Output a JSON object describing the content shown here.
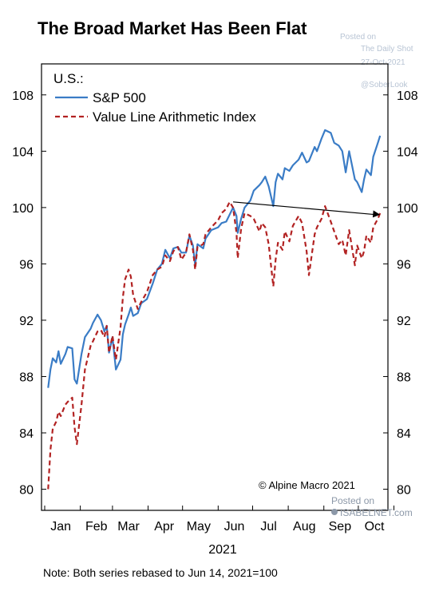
{
  "chart_data": {
    "type": "line",
    "title": "The Broad Market Has Been Flat",
    "panel_label": "U.S.:",
    "xlabel": "2021",
    "x_ticks": [
      "Jan",
      "Feb",
      "Mar",
      "Apr",
      "May",
      "Jun",
      "Jul",
      "Aug",
      "Sep",
      "Oct"
    ],
    "ylim": [
      78.5,
      110.2
    ],
    "y_ticks": [
      80,
      84,
      88,
      92,
      96,
      100,
      104,
      108
    ],
    "grid": false,
    "legend_position": "top-left",
    "source": "© Alpine Macro 2021",
    "note": "Note: Both series rebased to Jun 14, 2021=100",
    "series": [
      {
        "name": "S&P 500",
        "color": "#3a7cc6",
        "style": "solid",
        "points": [
          [
            "2021-01-04",
            87.2
          ],
          [
            "2021-01-06",
            88.5
          ],
          [
            "2021-01-08",
            89.3
          ],
          [
            "2021-01-11",
            89.0
          ],
          [
            "2021-01-13",
            89.8
          ],
          [
            "2021-01-15",
            88.9
          ],
          [
            "2021-01-19",
            89.6
          ],
          [
            "2021-01-21",
            90.1
          ],
          [
            "2021-01-25",
            90.0
          ],
          [
            "2021-01-27",
            87.8
          ],
          [
            "2021-01-29",
            87.5
          ],
          [
            "2021-02-02",
            89.6
          ],
          [
            "2021-02-05",
            90.8
          ],
          [
            "2021-02-10",
            91.4
          ],
          [
            "2021-02-12",
            91.8
          ],
          [
            "2021-02-16",
            92.4
          ],
          [
            "2021-02-19",
            92.0
          ],
          [
            "2021-02-22",
            91.2
          ],
          [
            "2021-02-24",
            91.6
          ],
          [
            "2021-02-26",
            89.7
          ],
          [
            "2021-03-01",
            90.8
          ],
          [
            "2021-03-04",
            88.5
          ],
          [
            "2021-03-08",
            89.2
          ],
          [
            "2021-03-10",
            91.0
          ],
          [
            "2021-03-12",
            91.7
          ],
          [
            "2021-03-15",
            92.4
          ],
          [
            "2021-03-17",
            92.9
          ],
          [
            "2021-03-19",
            92.3
          ],
          [
            "2021-03-23",
            92.5
          ],
          [
            "2021-03-26",
            93.2
          ],
          [
            "2021-03-31",
            93.5
          ],
          [
            "2021-04-05",
            94.6
          ],
          [
            "2021-04-09",
            95.6
          ],
          [
            "2021-04-13",
            96.0
          ],
          [
            "2021-04-16",
            97.0
          ],
          [
            "2021-04-20",
            96.4
          ],
          [
            "2021-04-23",
            97.1
          ],
          [
            "2021-04-27",
            97.2
          ],
          [
            "2021-04-30",
            96.8
          ],
          [
            "2021-05-04",
            96.8
          ],
          [
            "2021-05-07",
            98.0
          ],
          [
            "2021-05-10",
            97.3
          ],
          [
            "2021-05-12",
            95.9
          ],
          [
            "2021-05-14",
            97.4
          ],
          [
            "2021-05-19",
            97.1
          ],
          [
            "2021-05-21",
            97.8
          ],
          [
            "2021-05-26",
            98.4
          ],
          [
            "2021-06-01",
            98.6
          ],
          [
            "2021-06-04",
            98.9
          ],
          [
            "2021-06-08",
            99.0
          ],
          [
            "2021-06-11",
            99.5
          ],
          [
            "2021-06-14",
            100.0
          ],
          [
            "2021-06-17",
            99.4
          ],
          [
            "2021-06-18",
            98.2
          ],
          [
            "2021-06-21",
            99.2
          ],
          [
            "2021-06-24",
            100.0
          ],
          [
            "2021-06-29",
            100.5
          ],
          [
            "2021-07-02",
            101.2
          ],
          [
            "2021-07-07",
            101.6
          ],
          [
            "2021-07-09",
            101.8
          ],
          [
            "2021-07-12",
            102.2
          ],
          [
            "2021-07-15",
            101.5
          ],
          [
            "2021-07-19",
            100.1
          ],
          [
            "2021-07-21",
            101.8
          ],
          [
            "2021-07-23",
            102.4
          ],
          [
            "2021-07-27",
            102.0
          ],
          [
            "2021-07-29",
            102.8
          ],
          [
            "2021-08-02",
            102.6
          ],
          [
            "2021-08-05",
            103.0
          ],
          [
            "2021-08-10",
            103.4
          ],
          [
            "2021-08-13",
            103.9
          ],
          [
            "2021-08-17",
            103.2
          ],
          [
            "2021-08-19",
            103.3
          ],
          [
            "2021-08-24",
            104.3
          ],
          [
            "2021-08-26",
            104.0
          ],
          [
            "2021-08-30",
            104.9
          ],
          [
            "2021-09-02",
            105.5
          ],
          [
            "2021-09-07",
            105.3
          ],
          [
            "2021-09-10",
            104.6
          ],
          [
            "2021-09-14",
            104.4
          ],
          [
            "2021-09-17",
            104.0
          ],
          [
            "2021-09-20",
            102.5
          ],
          [
            "2021-09-23",
            104.0
          ],
          [
            "2021-09-28",
            102.0
          ],
          [
            "2021-09-30",
            101.8
          ],
          [
            "2021-10-04",
            101.1
          ],
          [
            "2021-10-06",
            102.0
          ],
          [
            "2021-10-08",
            102.7
          ],
          [
            "2021-10-12",
            102.3
          ],
          [
            "2021-10-14",
            103.6
          ],
          [
            "2021-10-18",
            104.6
          ],
          [
            "2021-10-20",
            105.1
          ]
        ]
      },
      {
        "name": "Value Line Arithmetic Index",
        "color": "#b22222",
        "style": "dashed",
        "points": [
          [
            "2021-01-04",
            80.0
          ],
          [
            "2021-01-06",
            82.8
          ],
          [
            "2021-01-08",
            84.3
          ],
          [
            "2021-01-11",
            84.8
          ],
          [
            "2021-01-13",
            85.5
          ],
          [
            "2021-01-15",
            85.2
          ],
          [
            "2021-01-19",
            86.0
          ],
          [
            "2021-01-21",
            86.2
          ],
          [
            "2021-01-25",
            86.5
          ],
          [
            "2021-01-27",
            84.4
          ],
          [
            "2021-01-29",
            83.2
          ],
          [
            "2021-02-02",
            86.0
          ],
          [
            "2021-02-05",
            88.5
          ],
          [
            "2021-02-10",
            90.2
          ],
          [
            "2021-02-12",
            90.5
          ],
          [
            "2021-02-16",
            91.2
          ],
          [
            "2021-02-19",
            91.3
          ],
          [
            "2021-02-22",
            90.8
          ],
          [
            "2021-02-24",
            91.6
          ],
          [
            "2021-02-26",
            89.7
          ],
          [
            "2021-03-01",
            90.9
          ],
          [
            "2021-03-04",
            89.2
          ],
          [
            "2021-03-08",
            91.5
          ],
          [
            "2021-03-10",
            93.6
          ],
          [
            "2021-03-12",
            94.9
          ],
          [
            "2021-03-15",
            95.6
          ],
          [
            "2021-03-17",
            95.1
          ],
          [
            "2021-03-19",
            93.8
          ],
          [
            "2021-03-23",
            92.8
          ],
          [
            "2021-03-26",
            93.3
          ],
          [
            "2021-03-31",
            94.0
          ],
          [
            "2021-04-05",
            95.2
          ],
          [
            "2021-04-09",
            95.6
          ],
          [
            "2021-04-13",
            95.8
          ],
          [
            "2021-04-16",
            96.6
          ],
          [
            "2021-04-20",
            96.2
          ],
          [
            "2021-04-23",
            96.9
          ],
          [
            "2021-04-27",
            97.2
          ],
          [
            "2021-04-30",
            96.3
          ],
          [
            "2021-05-04",
            96.8
          ],
          [
            "2021-05-07",
            98.1
          ],
          [
            "2021-05-10",
            97.0
          ],
          [
            "2021-05-12",
            95.6
          ],
          [
            "2021-05-14",
            97.2
          ],
          [
            "2021-05-19",
            97.4
          ],
          [
            "2021-05-21",
            98.1
          ],
          [
            "2021-05-26",
            98.6
          ],
          [
            "2021-06-01",
            99.1
          ],
          [
            "2021-06-04",
            99.6
          ],
          [
            "2021-06-08",
            99.9
          ],
          [
            "2021-06-11",
            100.4
          ],
          [
            "2021-06-14",
            100.0
          ],
          [
            "2021-06-17",
            98.2
          ],
          [
            "2021-06-18",
            96.4
          ],
          [
            "2021-06-21",
            98.5
          ],
          [
            "2021-06-24",
            99.6
          ],
          [
            "2021-06-29",
            99.4
          ],
          [
            "2021-07-02",
            99.2
          ],
          [
            "2021-07-07",
            98.3
          ],
          [
            "2021-07-09",
            98.9
          ],
          [
            "2021-07-12",
            98.6
          ],
          [
            "2021-07-15",
            97.4
          ],
          [
            "2021-07-19",
            94.4
          ],
          [
            "2021-07-21",
            96.3
          ],
          [
            "2021-07-23",
            97.5
          ],
          [
            "2021-07-27",
            97.0
          ],
          [
            "2021-07-29",
            98.3
          ],
          [
            "2021-08-02",
            97.6
          ],
          [
            "2021-08-05",
            98.7
          ],
          [
            "2021-08-10",
            99.4
          ],
          [
            "2021-08-13",
            98.9
          ],
          [
            "2021-08-17",
            96.9
          ],
          [
            "2021-08-19",
            95.2
          ],
          [
            "2021-08-24",
            98.1
          ],
          [
            "2021-08-26",
            98.6
          ],
          [
            "2021-08-30",
            99.2
          ],
          [
            "2021-09-02",
            100.1
          ],
          [
            "2021-09-07",
            99.0
          ],
          [
            "2021-09-10",
            98.3
          ],
          [
            "2021-09-14",
            97.4
          ],
          [
            "2021-09-17",
            97.7
          ],
          [
            "2021-09-20",
            96.6
          ],
          [
            "2021-09-23",
            98.4
          ],
          [
            "2021-09-28",
            95.9
          ],
          [
            "2021-09-30",
            97.3
          ],
          [
            "2021-10-04",
            96.4
          ],
          [
            "2021-10-06",
            96.9
          ],
          [
            "2021-10-08",
            98.0
          ],
          [
            "2021-10-12",
            97.5
          ],
          [
            "2021-10-14",
            98.6
          ],
          [
            "2021-10-18",
            99.2
          ],
          [
            "2021-10-20",
            99.6
          ]
        ]
      }
    ],
    "annotation_arrow": {
      "from": [
        "2021-06-14",
        100.4
      ],
      "to": [
        "2021-10-20",
        99.5
      ],
      "color": "#000000"
    }
  },
  "watermarks": {
    "daily_shot": [
      "Posted on",
      "The Daily Shot",
      "27-Oct-2021",
      "@SoberLook"
    ],
    "isabelnet": [
      "Posted on",
      "ISABELNET.com"
    ]
  }
}
